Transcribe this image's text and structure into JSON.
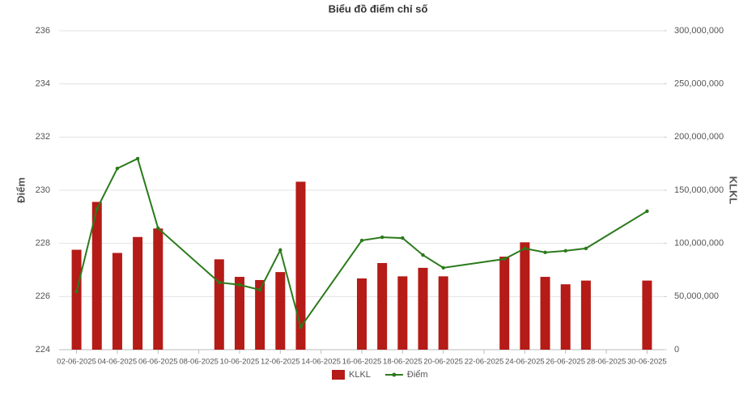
{
  "chart_data": {
    "type": "combo",
    "title": "Biểu đồ điểm chỉ số",
    "y_label": "Điểm",
    "y2_label": "KLKL",
    "categories": [
      "02-06-2025",
      null,
      "04-06-2025",
      null,
      "06-06-2025",
      null,
      "08-06-2025",
      null,
      "10-06-2025",
      null,
      "12-06-2025",
      null,
      "14-06-2025",
      null,
      "16-06-2025",
      null,
      "18-06-2025",
      null,
      "20-06-2025",
      null,
      "22-06-2025",
      null,
      "24-06-2025",
      null,
      "26-06-2025",
      null,
      "28-06-2025",
      null,
      "30-06-2025"
    ],
    "series": [
      {
        "name": "KLKL",
        "type": "bar",
        "axis": "y2",
        "color": "#b51b17",
        "values": [
          94000000,
          139000000,
          91000000,
          106000000,
          114000000,
          null,
          null,
          85000000,
          68500000,
          65500000,
          73000000,
          158000000,
          null,
          null,
          67000000,
          81500000,
          69000000,
          77000000,
          69000000,
          null,
          null,
          87500000,
          101000000,
          68500000,
          61500000,
          65000000,
          null,
          null,
          65000000
        ]
      },
      {
        "name": "Điểm",
        "type": "line",
        "axis": "y",
        "color": "#2b7a1b",
        "connect_gaps": true,
        "values": [
          226.19,
          229.3,
          230.82,
          231.19,
          228.57,
          null,
          null,
          226.53,
          226.44,
          226.25,
          227.75,
          224.85,
          null,
          null,
          228.11,
          228.23,
          228.2,
          227.56,
          227.08,
          null,
          null,
          227.41,
          227.81,
          227.66,
          227.72,
          227.81,
          null,
          null,
          229.21
        ]
      }
    ],
    "ylim": [
      224,
      236
    ],
    "yticks": [
      224,
      226,
      228,
      230,
      232,
      234,
      236
    ],
    "y2lim": [
      0,
      300000000
    ],
    "y2ticks": [
      0,
      {
        "value": 50000000,
        "label": "50,000,000"
      },
      {
        "value": 100000000,
        "label": "100,000,000"
      },
      {
        "value": 150000000,
        "label": "150,000,000"
      },
      {
        "value": 200000000,
        "label": "200,000,000"
      },
      {
        "value": 250000000,
        "label": "250,000,000"
      },
      {
        "value": 300000000,
        "label": "300,000,000"
      }
    ],
    "grid": true,
    "legend": "bottom"
  }
}
